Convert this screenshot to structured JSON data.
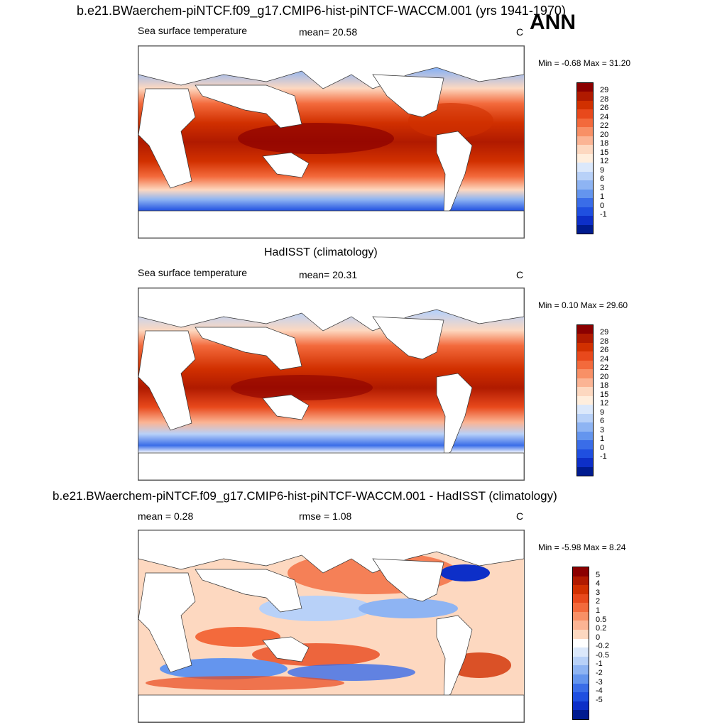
{
  "season": "ANN",
  "panels": [
    {
      "title": "b.e21.BWaerchem-piNTCF.f09_g17.CMIP6-hist-piNTCF-WACCM.001 (yrs 1941-1970)",
      "left_label": "Sea surface temperature",
      "center_label": "mean=  20.58",
      "unit": "C",
      "minmax": "Min =  -0.68 Max =  31.20",
      "levels": [
        "29",
        "28",
        "26",
        "24",
        "22",
        "20",
        "18",
        "15",
        "12",
        "9",
        "6",
        "3",
        "1",
        "0",
        "-1"
      ],
      "colors": [
        "#8b0000",
        "#b01a00",
        "#d13000",
        "#e8491c",
        "#f36a3c",
        "#f89066",
        "#fbb494",
        "#fdd8c0",
        "#ffeedd",
        "#dbe8fb",
        "#b8d1f8",
        "#8eb4f3",
        "#6495ee",
        "#3a6de8",
        "#1f4fe0",
        "#0d2fc8",
        "#001b8f"
      ]
    },
    {
      "title": "HadISST (climatology)",
      "left_label": "Sea surface temperature",
      "center_label": "mean=  20.31",
      "unit": "C",
      "minmax": "Min =   0.10 Max =  29.60",
      "levels": [
        "29",
        "28",
        "26",
        "24",
        "22",
        "20",
        "18",
        "15",
        "12",
        "9",
        "6",
        "3",
        "1",
        "0",
        "-1"
      ],
      "colors": [
        "#8b0000",
        "#b01a00",
        "#d13000",
        "#e8491c",
        "#f36a3c",
        "#f89066",
        "#fbb494",
        "#fdd8c0",
        "#ffeedd",
        "#dbe8fb",
        "#b8d1f8",
        "#8eb4f3",
        "#6495ee",
        "#3a6de8",
        "#1f4fe0",
        "#0d2fc8",
        "#001b8f"
      ]
    },
    {
      "title": "b.e21.BWaerchem-piNTCF.f09_g17.CMIP6-hist-piNTCF-WACCM.001 - HadISST (climatology)",
      "left_label": "mean =   0.28",
      "center_label": "rmse =   1.08",
      "unit": "C",
      "minmax": "Min =  -5.98 Max =   8.24",
      "levels": [
        "5",
        "4",
        "3",
        "2",
        "1",
        "0.5",
        "0.2",
        "0",
        "-0.2",
        "-0.5",
        "-1",
        "-2",
        "-3",
        "-4",
        "-5"
      ],
      "colors": [
        "#8b0000",
        "#b01a00",
        "#d13000",
        "#e8491c",
        "#f36a3c",
        "#f89066",
        "#fbb494",
        "#fdd8c0",
        "#ffffff",
        "#dbe8fb",
        "#b8d1f8",
        "#8eb4f3",
        "#6495ee",
        "#3a6de8",
        "#1f4fe0",
        "#0d2fc8",
        "#001b8f"
      ]
    }
  ]
}
